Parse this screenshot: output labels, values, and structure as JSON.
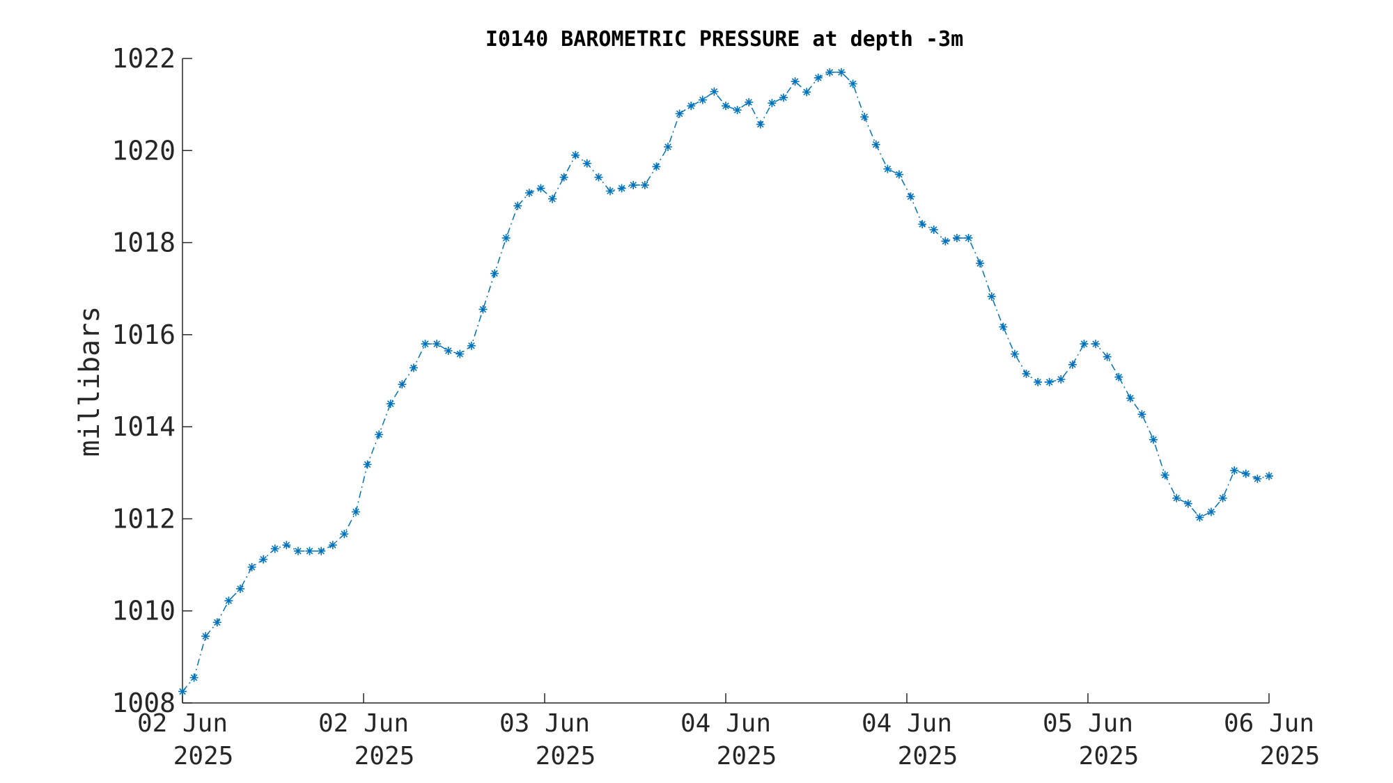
{
  "chart_data": {
    "type": "line",
    "title": "I0140 BAROMETRIC PRESSURE at depth -3m",
    "xlabel": "",
    "ylabel": "millibars",
    "ylim": [
      1008,
      1022
    ],
    "yticks": [
      1008,
      1010,
      1012,
      1014,
      1016,
      1018,
      1020,
      1022
    ],
    "xticks": [
      {
        "line1": "02 Jun",
        "line2": "2025"
      },
      {
        "line1": "02 Jun",
        "line2": "2025"
      },
      {
        "line1": "03 Jun",
        "line2": "2025"
      },
      {
        "line1": "04 Jun",
        "line2": "2025"
      },
      {
        "line1": "04 Jun",
        "line2": "2025"
      },
      {
        "line1": "05 Jun",
        "line2": "2025"
      },
      {
        "line1": "06 Jun",
        "line2": "2025"
      }
    ],
    "grid": false,
    "series": [
      {
        "color": "#0072BD",
        "marker": "asterisk",
        "line_style": "dash-dot",
        "values": [
          1008.25,
          1008.55,
          1009.45,
          1009.75,
          1010.22,
          1010.48,
          1010.95,
          1011.12,
          1011.35,
          1011.43,
          1011.3,
          1011.3,
          1011.3,
          1011.43,
          1011.67,
          1012.15,
          1013.18,
          1013.83,
          1014.5,
          1014.92,
          1015.28,
          1015.8,
          1015.8,
          1015.65,
          1015.58,
          1015.76,
          1016.55,
          1017.33,
          1018.1,
          1018.8,
          1019.08,
          1019.18,
          1018.95,
          1019.42,
          1019.9,
          1019.72,
          1019.42,
          1019.12,
          1019.18,
          1019.25,
          1019.25,
          1019.65,
          1020.08,
          1020.8,
          1020.97,
          1021.1,
          1021.28,
          1020.97,
          1020.88,
          1021.05,
          1020.57,
          1021.03,
          1021.15,
          1021.5,
          1021.27,
          1021.58,
          1021.7,
          1021.7,
          1021.45,
          1020.73,
          1020.13,
          1019.6,
          1019.48,
          1019.0,
          1018.4,
          1018.28,
          1018.03,
          1018.1,
          1018.1,
          1017.55,
          1016.83,
          1016.17,
          1015.58,
          1015.15,
          1014.97,
          1014.97,
          1015.03,
          1015.35,
          1015.8,
          1015.8,
          1015.52,
          1015.08,
          1014.62,
          1014.27,
          1013.72,
          1012.95,
          1012.45,
          1012.33,
          1012.03,
          1012.15,
          1012.45,
          1013.05,
          1012.98,
          1012.87,
          1012.93
        ]
      }
    ]
  }
}
